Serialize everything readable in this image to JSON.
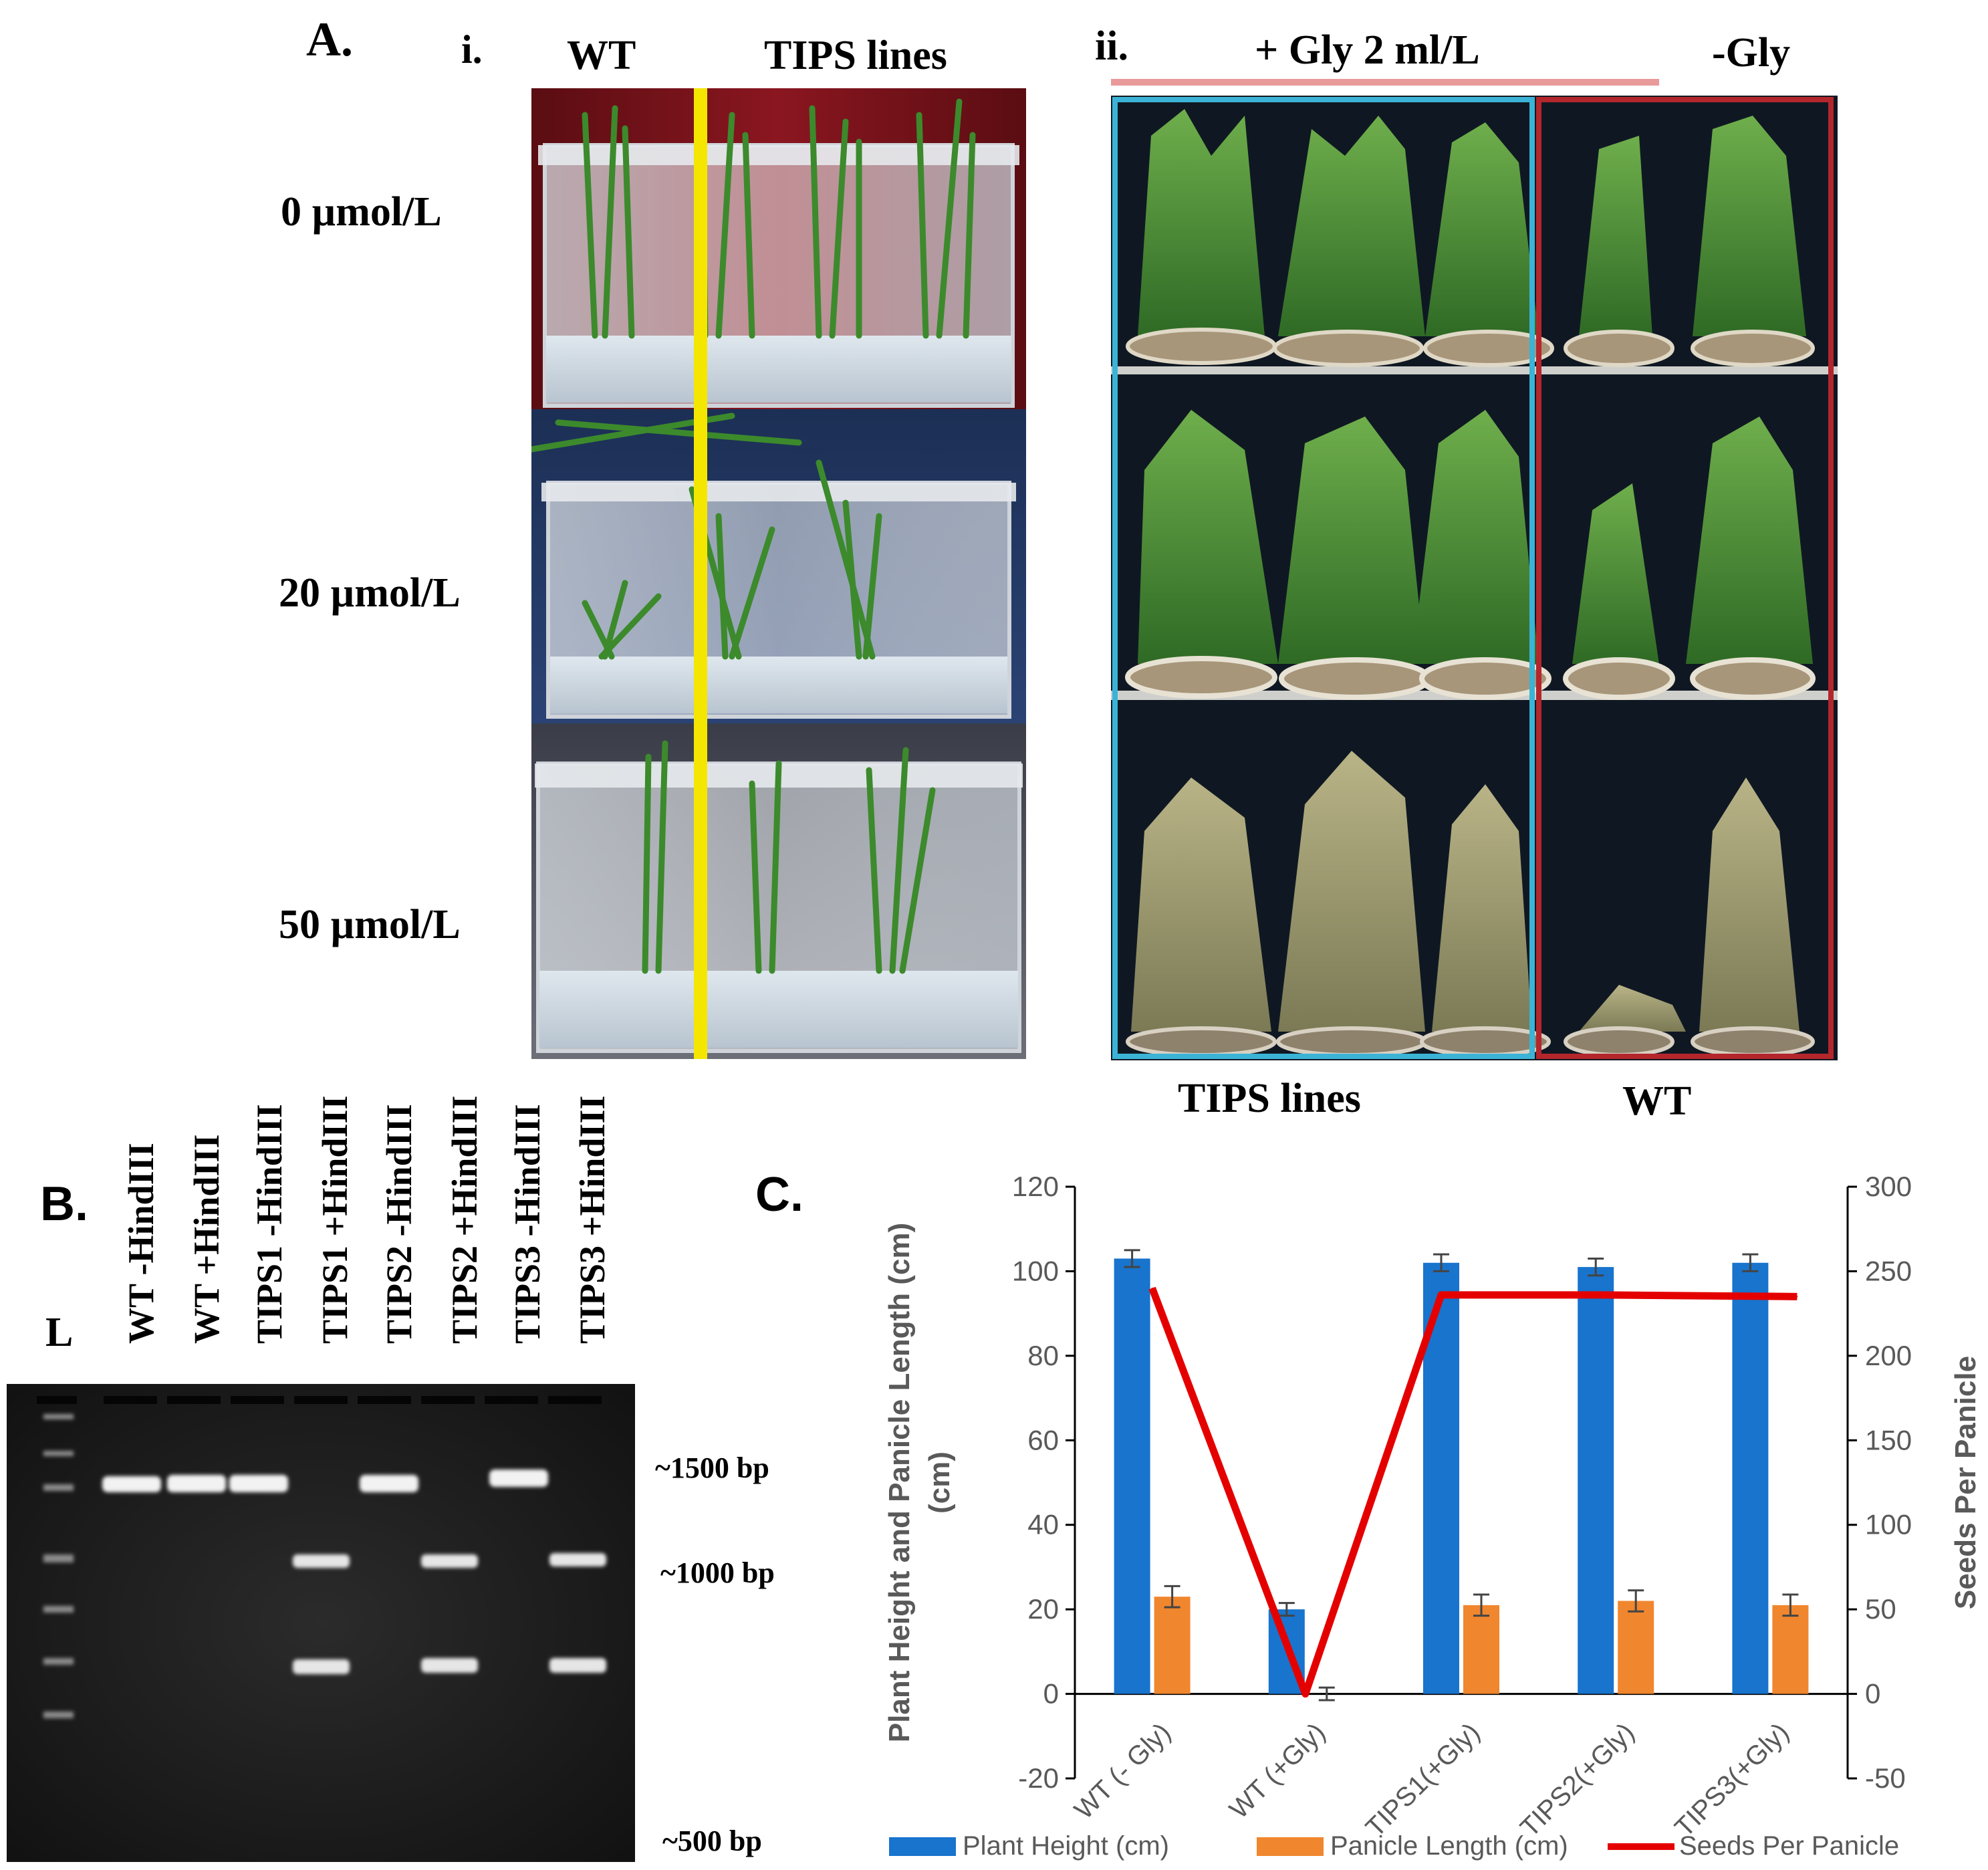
{
  "panel_a": {
    "label": "A.",
    "sub_i": {
      "label": "i.",
      "col_wt": "WT",
      "col_tips": "TIPS lines",
      "rows": [
        "0 µmol/L",
        "20 µmol/L",
        "50 µmol/L"
      ]
    },
    "sub_ii": {
      "label": "ii.",
      "treat_plus": "+ Gly 2 ml/L",
      "treat_minus": "-Gly",
      "bottom_tips": "TIPS lines",
      "bottom_wt": "WT"
    }
  },
  "panel_b": {
    "label": "B.",
    "ladder": "L",
    "lanes": [
      "WT -HindIII",
      "WT +HindIII",
      "TIPS1 -HindIII",
      "TIPS1 +HindIII",
      "TIPS2 -HindIII",
      "TIPS2 +HindIII",
      "TIPS3 -HindIII",
      "TIPS3 +HindIII"
    ],
    "markers": [
      "~1500 bp",
      "~1000 bp",
      "~500 bp"
    ]
  },
  "panel_c": {
    "label": "C."
  },
  "colors": {
    "plant_height": "#1874CD",
    "panicle_length": "#F0862E",
    "seeds": "#E50000",
    "axis_text": "#595959",
    "cyan_box": "#3BB3D6",
    "red_box": "#B3262C",
    "yellow_line": "#F5E600"
  },
  "chart_data": {
    "type": "bar",
    "categories": [
      "WT (- Gly)",
      "WT (+Gly)",
      "TIPS1(+Gly)",
      "TIPS2(+Gly)",
      "TIPS3(+Gly)"
    ],
    "series": [
      {
        "name": "Plant Height (cm)",
        "axis": "left",
        "kind": "bar",
        "values": [
          103,
          20,
          102,
          101,
          102
        ],
        "errors": [
          2,
          1.5,
          2,
          2,
          2
        ]
      },
      {
        "name": "Panicle Length (cm)",
        "axis": "left",
        "kind": "bar",
        "values": [
          23,
          0,
          21,
          22,
          21
        ],
        "errors": [
          2.5,
          1.5,
          2.5,
          2.5,
          2.5
        ]
      },
      {
        "name": "Seeds Per Panicle",
        "axis": "right",
        "kind": "line",
        "values": [
          240,
          0,
          236,
          236,
          235
        ]
      }
    ],
    "ylabel": "Plant Height and Panicle Length (cm)",
    "y2label": "Seeds Per Panicle",
    "ylim": [
      -20,
      120
    ],
    "y2lim": [
      -50,
      300
    ],
    "yticks": [
      -20,
      0,
      20,
      40,
      60,
      80,
      100,
      120
    ],
    "y2ticks": [
      -50,
      0,
      50,
      100,
      150,
      200,
      250,
      300
    ],
    "legend": [
      "Plant Height (cm)",
      "Panicle Length (cm)",
      "Seeds Per Panicle"
    ],
    "legend_position": "bottom"
  }
}
